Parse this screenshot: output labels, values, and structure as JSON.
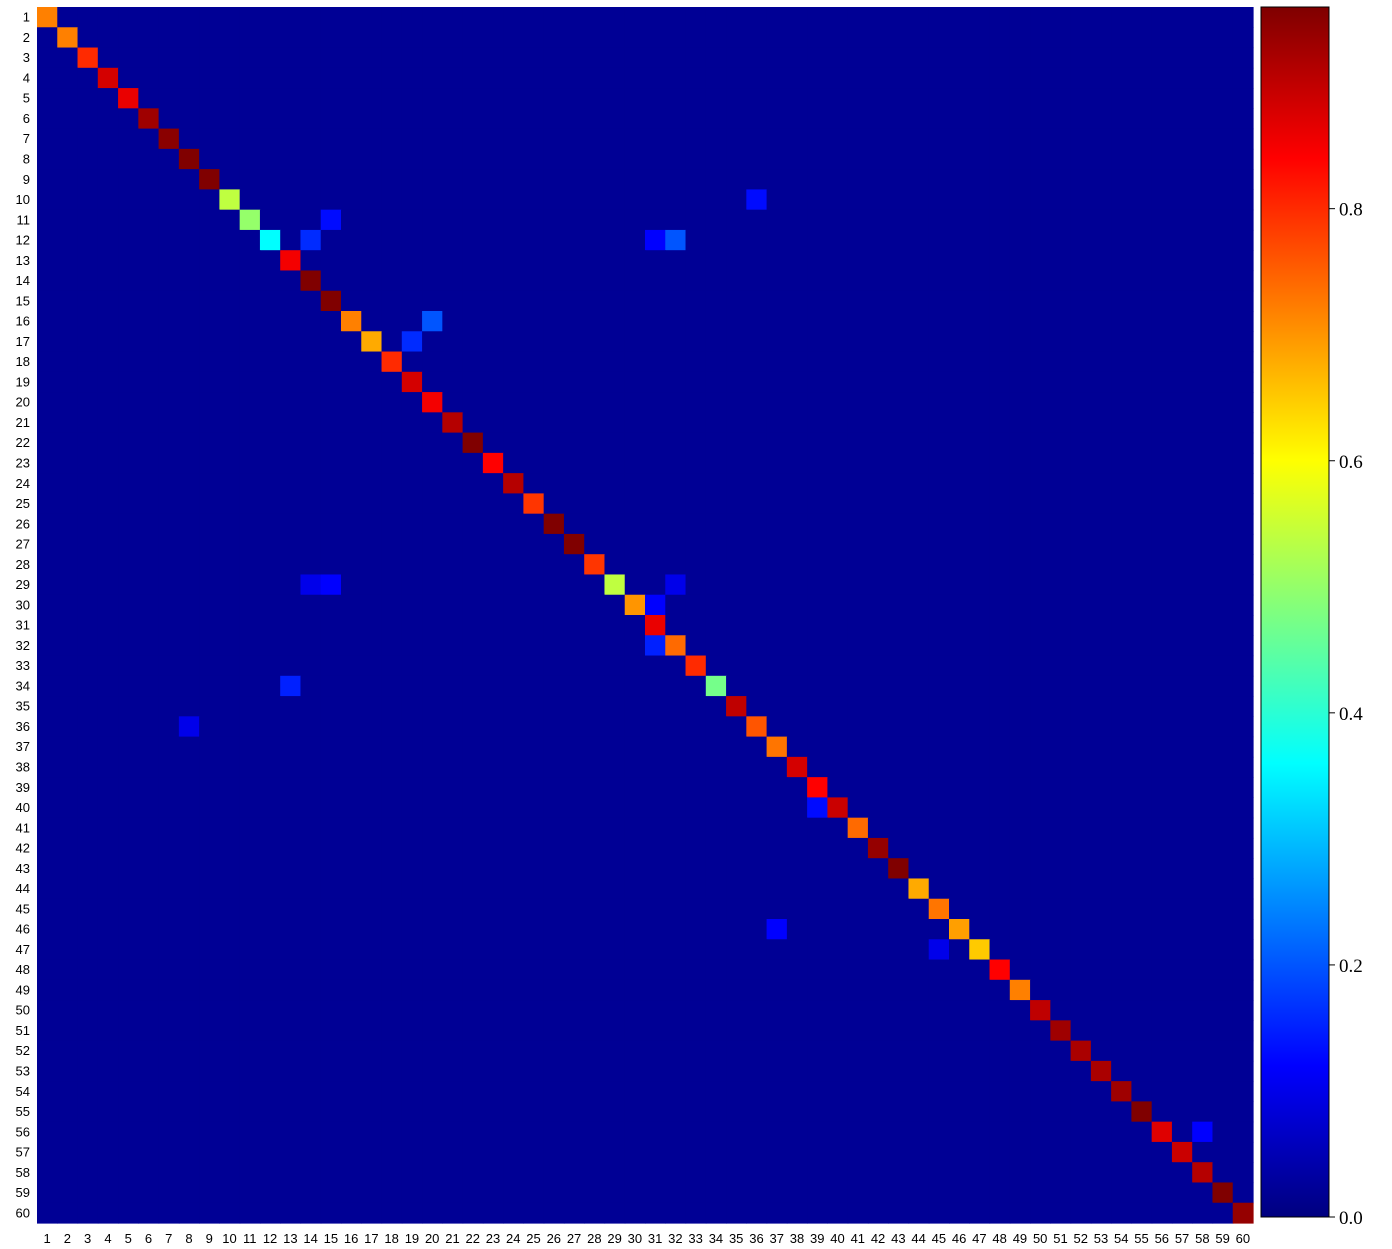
{
  "chart_data": {
    "type": "heatmap",
    "title": "",
    "xlabel": "",
    "ylabel": "",
    "categories": [
      "1",
      "2",
      "3",
      "4",
      "5",
      "6",
      "7",
      "8",
      "9",
      "10",
      "11",
      "12",
      "13",
      "14",
      "15",
      "16",
      "17",
      "18",
      "19",
      "20",
      "21",
      "22",
      "23",
      "24",
      "25",
      "26",
      "27",
      "28",
      "29",
      "30",
      "31",
      "32",
      "33",
      "34",
      "35",
      "36",
      "37",
      "38",
      "39",
      "40",
      "41",
      "42",
      "43",
      "44",
      "45",
      "46",
      "47",
      "48",
      "49",
      "50",
      "51",
      "52",
      "53",
      "54",
      "55",
      "56",
      "57",
      "58",
      "59",
      "60"
    ],
    "diagonal": [
      0.72,
      0.72,
      0.8,
      0.88,
      0.86,
      0.93,
      0.95,
      0.97,
      0.99,
      0.54,
      0.5,
      0.36,
      0.85,
      0.98,
      0.96,
      0.72,
      0.68,
      0.8,
      0.88,
      0.85,
      0.91,
      0.97,
      0.84,
      0.91,
      0.79,
      0.96,
      0.99,
      0.79,
      0.54,
      0.7,
      0.86,
      0.74,
      0.8,
      0.47,
      0.9,
      0.76,
      0.73,
      0.88,
      0.84,
      0.89,
      0.74,
      0.94,
      0.99,
      0.68,
      0.73,
      0.69,
      0.65,
      0.84,
      0.72,
      0.9,
      0.93,
      0.92,
      0.92,
      0.93,
      0.96,
      0.87,
      0.89,
      0.91,
      0.96,
      0.94
    ],
    "off_diagonal": [
      {
        "row": 10,
        "col": 36,
        "value": 0.13
      },
      {
        "row": 11,
        "col": 15,
        "value": 0.13
      },
      {
        "row": 12,
        "col": 14,
        "value": 0.16
      },
      {
        "row": 12,
        "col": 31,
        "value": 0.12
      },
      {
        "row": 12,
        "col": 32,
        "value": 0.2
      },
      {
        "row": 16,
        "col": 20,
        "value": 0.2
      },
      {
        "row": 17,
        "col": 19,
        "value": 0.16
      },
      {
        "row": 29,
        "col": 14,
        "value": 0.1
      },
      {
        "row": 29,
        "col": 15,
        "value": 0.12
      },
      {
        "row": 29,
        "col": 32,
        "value": 0.1
      },
      {
        "row": 30,
        "col": 31,
        "value": 0.12
      },
      {
        "row": 32,
        "col": 31,
        "value": 0.15
      },
      {
        "row": 34,
        "col": 13,
        "value": 0.15
      },
      {
        "row": 36,
        "col": 8,
        "value": 0.1
      },
      {
        "row": 40,
        "col": 39,
        "value": 0.13
      },
      {
        "row": 46,
        "col": 37,
        "value": 0.12
      },
      {
        "row": 47,
        "col": 45,
        "value": 0.1
      },
      {
        "row": 56,
        "col": 58,
        "value": 0.12
      }
    ],
    "background_value": 0.02,
    "colormap": "jet",
    "colorbar": {
      "min": 0.0,
      "max": 0.96,
      "ticks": [
        "0.0",
        "0.2",
        "0.4",
        "0.6",
        "0.8"
      ]
    },
    "grid": false,
    "legend": "none"
  }
}
